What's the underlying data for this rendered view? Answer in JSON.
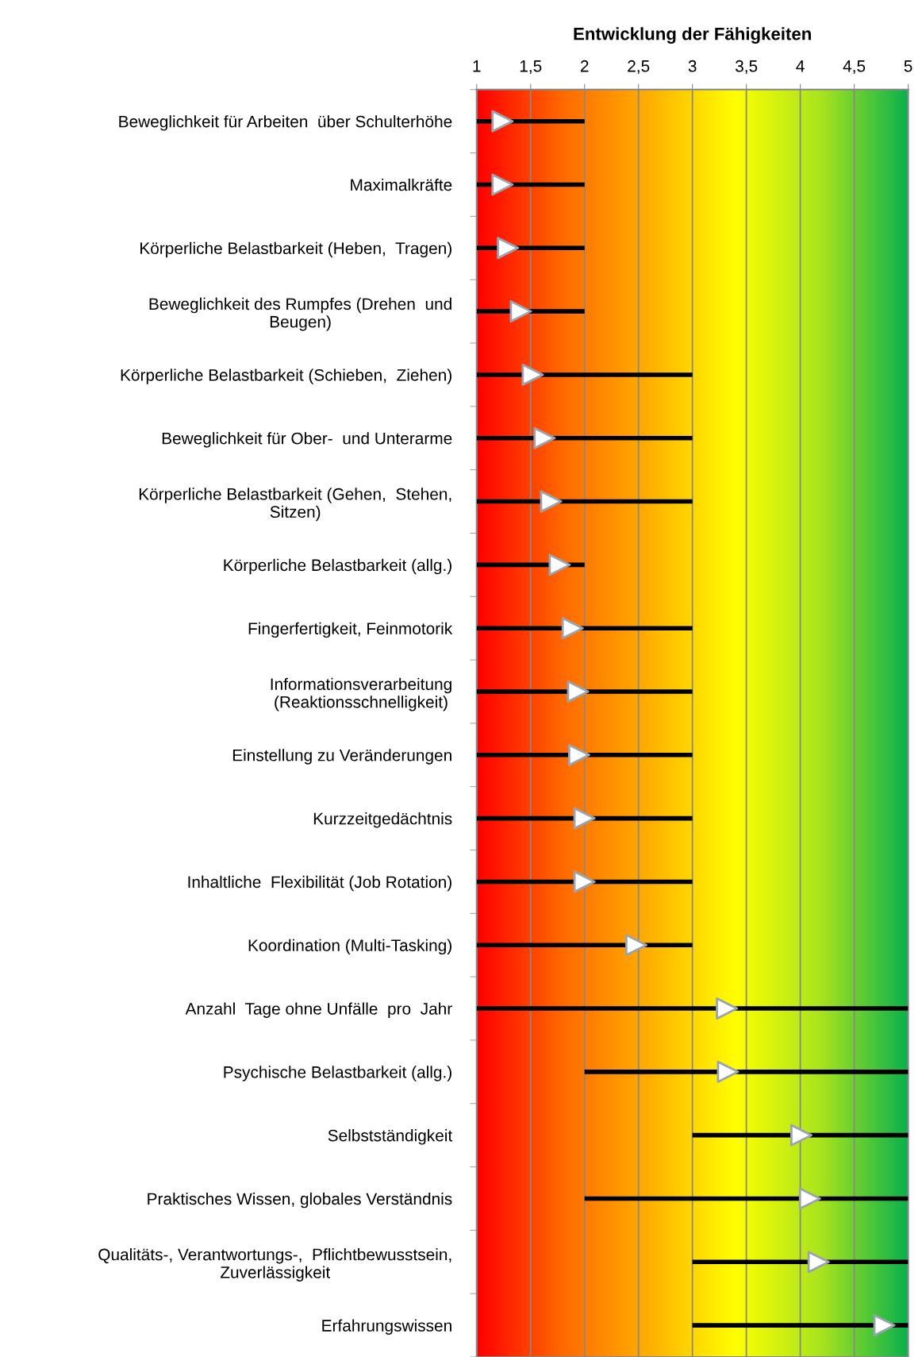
{
  "chart_data": {
    "type": "bar",
    "orientation": "horizontal",
    "title": "Entwicklung der Fähigkeiten",
    "categories": [
      "Beweglichkeit für Arbeiten  über Schulterhöhe",
      "Maximalkräfte",
      "Körperliche Belastbarkeit (Heben,  Tragen)",
      "Beweglichkeit des Rumpfes (Drehen  und\nBeugen)",
      "Körperliche Belastbarkeit (Schieben,  Ziehen)",
      "Beweglichkeit für Ober-  und Unterarme",
      "Körperliche Belastbarkeit (Gehen,  Stehen,\nSitzen)",
      "Körperliche Belastbarkeit (allg.)",
      "Fingerfertigkeit, Feinmotorik",
      "Informationsverarbeitung\n(Reaktionsschnelligkeit)",
      "Einstellung zu Veränderungen",
      "Kurzzeitgedächtnis",
      "Inhaltliche  Flexibilität (Job Rotation)",
      "Koordination (Multi-Tasking)",
      "Anzahl  Tage ohne Unfälle  pro  Jahr",
      "Psychische Belastbarkeit (allg.)",
      "Selbstständigkeit",
      "Praktisches Wissen, globales Verständnis",
      "Qualitäts-, Verantwortungs-,  Pflichtbewusstsein,\nZuverlässigkeit",
      "Erfahrungswissen"
    ],
    "series": [
      {
        "color": "#000000",
        "base": [
          1,
          1,
          1,
          1,
          1,
          1,
          1,
          1,
          1,
          1,
          1,
          1,
          1,
          1,
          1,
          2,
          3,
          2,
          3,
          3
        ],
        "values": [
          1,
          1,
          1,
          1,
          2,
          2,
          2,
          1,
          2,
          2,
          2,
          2,
          2,
          2,
          4,
          3,
          2,
          3,
          2,
          2
        ]
      },
      {
        "type": "scatter",
        "color": "#ffffff",
        "marker": "triangle",
        "values": [
          1.24,
          1.24,
          1.29,
          1.41,
          1.52,
          1.63,
          1.69,
          1.77,
          1.89,
          1.94,
          1.95,
          2.0,
          2.0,
          2.48,
          3.32,
          3.33,
          4.01,
          4.09,
          4.17,
          4.78
        ]
      }
    ],
    "xlim": [
      1,
      5
    ],
    "xticks": [
      1,
      {
        "value": 1.5,
        "label": "1,5"
      },
      2,
      {
        "value": 2.5,
        "label": "2,5"
      },
      3,
      {
        "value": 3.5,
        "label": "3,5"
      },
      4,
      {
        "value": 4.5,
        "label": "4,5"
      },
      5
    ],
    "grid": "x",
    "legend": false
  }
}
